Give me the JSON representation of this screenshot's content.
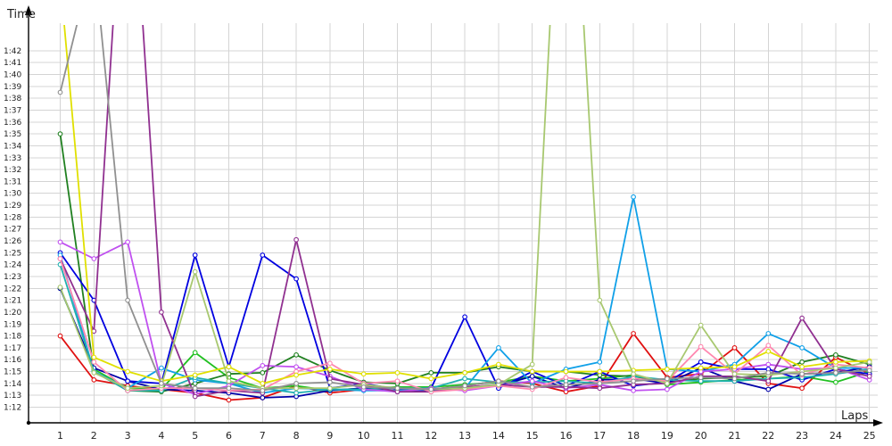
{
  "chart_data": {
    "type": "line",
    "ylabel": "Time",
    "xlabel": "Laps",
    "x": [
      1,
      2,
      3,
      4,
      5,
      6,
      7,
      8,
      9,
      10,
      11,
      12,
      13,
      14,
      15,
      16,
      17,
      18,
      19,
      20,
      21,
      22,
      23,
      24,
      25
    ],
    "yticks": [
      "1:12",
      "1:13",
      "1:14",
      "1:15",
      "1:16",
      "1:17",
      "1:18",
      "1:19",
      "1:20",
      "1:21",
      "1:22",
      "1:23",
      "1:24",
      "1:25",
      "1:26",
      "1:27",
      "1:28",
      "1:29",
      "1:30",
      "1:31",
      "1:32",
      "1:33",
      "1:34",
      "1:35",
      "1:36",
      "1:37",
      "1:38",
      "1:39",
      "1:40",
      "1:41",
      "1:42"
    ],
    "ylim_seconds": [
      71,
      105
    ],
    "grid": true,
    "series": [
      {
        "color": "#e01010",
        "values": [
          78,
          74.3,
          73.8,
          73.5,
          73.2,
          72.6,
          72.8,
          73.8,
          73.2,
          73.5,
          73.4,
          73.5,
          73.8,
          74.2,
          74,
          73.3,
          73.8,
          78.2,
          74.5,
          74.8,
          77,
          74,
          73.6,
          76.2,
          74.8
        ]
      },
      {
        "color": "#20c020",
        "values": [
          82,
          75.2,
          73.6,
          73.5,
          76.6,
          74.5,
          73.6,
          73.8,
          73.4,
          73.6,
          73.7,
          73.7,
          73.9,
          74.1,
          74.6,
          74.2,
          74.4,
          74.7,
          73.9,
          74.1,
          74.3,
          74.4,
          74.6,
          74.1,
          75
        ]
      },
      {
        "color": "#208020",
        "values": [
          95,
          75,
          73.4,
          73.3,
          74,
          74.8,
          74.9,
          76.4,
          75.1,
          74.1,
          74,
          74.9,
          74.9,
          75.4,
          75,
          75,
          74.7,
          74.6,
          74.1,
          74.4,
          74.5,
          74.6,
          75.8,
          76.4,
          75.6
        ]
      },
      {
        "color": "#0000a8",
        "values": [
          82,
          75.3,
          74.2,
          73.5,
          73.4,
          73.2,
          72.8,
          72.9,
          73.4,
          73.6,
          73.3,
          73.4,
          73.6,
          73.8,
          74.6,
          73.6,
          74.3,
          74.4,
          74,
          75.3,
          74.2,
          73.5,
          74.8,
          74.9,
          75.4
        ]
      },
      {
        "color": "#0000e0",
        "values": [
          85,
          81,
          74.2,
          74,
          84.8,
          75.4,
          84.8,
          82.8,
          73.6,
          74,
          73.5,
          73.6,
          79.6,
          73.6,
          75,
          73.8,
          75,
          73.8,
          74.1,
          75.8,
          75.2,
          75.2,
          74.3,
          75.2,
          74.8
        ]
      },
      {
        "color": "#10a0e8",
        "values": [
          84.8,
          75,
          73.6,
          75.3,
          74.3,
          74,
          73.2,
          73.6,
          73.5,
          73.4,
          73.4,
          73.5,
          73.6,
          77,
          74,
          75.2,
          75.8,
          89.7,
          75.2,
          75,
          75.6,
          78.2,
          77,
          75.3,
          75.3
        ]
      },
      {
        "color": "#20b0b0",
        "values": [
          84,
          75,
          73.4,
          73.4,
          74.5,
          74,
          73.6,
          73.2,
          73.5,
          73.5,
          73.6,
          73.6,
          74.4,
          74.1,
          74.1,
          74.2,
          74,
          74.6,
          74.3,
          74.2,
          74.2,
          74.4,
          74.5,
          74.8,
          75.2
        ]
      },
      {
        "color": "#c050f0",
        "values": [
          85.9,
          84.5,
          85.9,
          74,
          73.1,
          73.8,
          75.5,
          75.4,
          74.6,
          73.5,
          73.3,
          73.6,
          73.4,
          73.8,
          74.2,
          73.6,
          73.9,
          73.4,
          73.5,
          75,
          75.2,
          75.6,
          75.2,
          75.3,
          74.3
        ]
      },
      {
        "color": "#903090",
        "values": [
          84.5,
          78.4,
          124,
          80,
          72.9,
          73.4,
          73.2,
          86.1,
          74.4,
          73.9,
          73.3,
          73.3,
          73.7,
          73.9,
          73.7,
          73.7,
          73.6,
          73.9,
          74,
          74.6,
          74.6,
          74.2,
          79.5,
          75.2,
          74.6
        ]
      },
      {
        "color": "#ff88b0",
        "values": [
          84.5,
          75.8,
          73.4,
          73.6,
          73.6,
          73.4,
          73.5,
          75,
          75.7,
          74,
          74.2,
          73.3,
          73.5,
          73.8,
          73.5,
          74.5,
          74.1,
          74.4,
          74.2,
          77.1,
          74.8,
          77.2,
          74.7,
          75.6,
          75.3
        ]
      },
      {
        "color": "#e0e000",
        "values": [
          108,
          76.2,
          75,
          74.2,
          74.7,
          75.4,
          74,
          74.7,
          75.2,
          74.8,
          74.9,
          74.4,
          74.9,
          75.6,
          75,
          75,
          75,
          75.1,
          75.2,
          75.3,
          75.4,
          76.7,
          75.4,
          75.8,
          75.9
        ]
      },
      {
        "color": "#a8c870",
        "values": [
          82.1,
          74.9,
          73.6,
          73.8,
          83.4,
          74.2,
          73.6,
          73.6,
          73.6,
          73.9,
          73.6,
          73.5,
          73.6,
          73.9,
          75.6,
          130,
          81,
          74.8,
          74,
          78.9,
          74.8,
          74.7,
          75,
          75.3,
          75.8
        ]
      },
      {
        "color": "#909090",
        "values": [
          98.5,
          110,
          81,
          74,
          73.6,
          73.6,
          73.4,
          74,
          74.1,
          73.7,
          73.6,
          73.5,
          73.8,
          74.2,
          73.7,
          73.9,
          74,
          74.2,
          74.4,
          74.5,
          74.4,
          74.9,
          74.8,
          74.9,
          75.1
        ]
      }
    ]
  }
}
